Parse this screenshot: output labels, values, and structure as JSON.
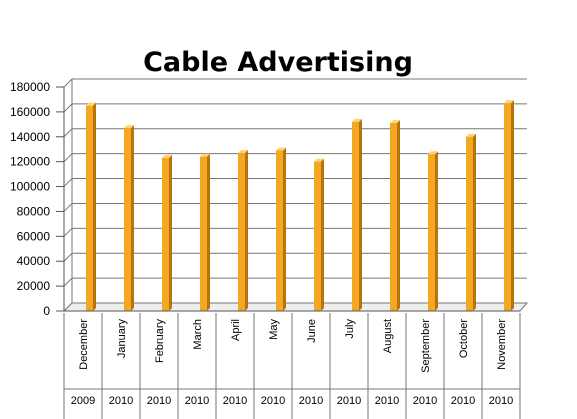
{
  "chart_data": {
    "type": "bar",
    "title": "Cable Advertising",
    "categories": [
      "December",
      "January",
      "February",
      "March",
      "April",
      "May",
      "June",
      "July",
      "August",
      "September",
      "October",
      "November"
    ],
    "years": [
      "2009",
      "2010",
      "2010",
      "2010",
      "2010",
      "2010",
      "2010",
      "2010",
      "2010",
      "2010",
      "2010",
      "2010"
    ],
    "values": [
      165000,
      147000,
      123000,
      124000,
      127000,
      129000,
      120000,
      152000,
      151000,
      126000,
      140000,
      167000
    ],
    "ylim": [
      0,
      180000
    ],
    "yticks": [
      "0",
      "20000",
      "40000",
      "60000",
      "80000",
      "100000",
      "120000",
      "140000",
      "160000",
      "180000"
    ],
    "grid": true,
    "legend": "none",
    "bar_color": "#f5a623",
    "bar_side_color": "#b8740a"
  }
}
